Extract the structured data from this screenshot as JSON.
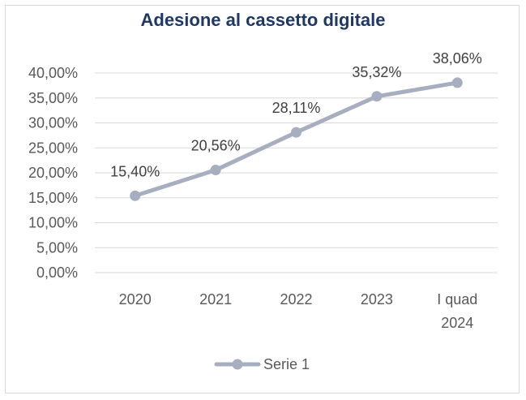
{
  "chart_data": {
    "type": "line",
    "title": "Adesione al cassetto digitale",
    "categories": [
      [
        "2020"
      ],
      [
        "2021"
      ],
      [
        "2022"
      ],
      [
        "2023"
      ],
      [
        "I quad",
        "2024"
      ]
    ],
    "series": [
      {
        "name": "Serie 1",
        "values": [
          15.4,
          20.56,
          28.11,
          35.32,
          38.06
        ],
        "labels": [
          "15,40%",
          "20,56%",
          "28,11%",
          "35,32%",
          "38,06%"
        ]
      }
    ],
    "y_ticks": [
      "0,00%",
      "5,00%",
      "10,00%",
      "15,00%",
      "20,00%",
      "25,00%",
      "30,00%",
      "35,00%",
      "40,00%"
    ],
    "ylim": [
      0,
      40
    ],
    "grid": true,
    "legend_position": "bottom",
    "colors": {
      "series": "#a6aebf",
      "grid": "#d9d9d9",
      "title": "#1f3864"
    }
  }
}
